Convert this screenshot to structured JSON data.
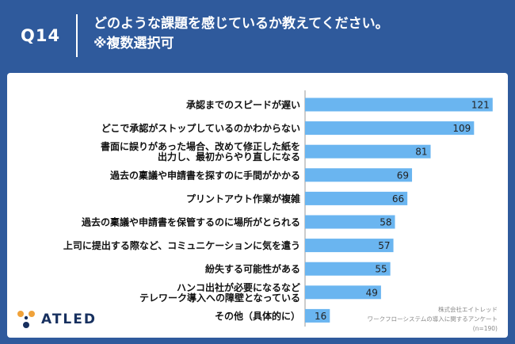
{
  "header": {
    "qnum": "Q14",
    "title_line1": "どのような課題を感じているか教えてください。",
    "title_line2": "※複数選択可"
  },
  "logo": {
    "text": "ATLED"
  },
  "footnote": {
    "company": "株式会社エイトレッド",
    "survey": "ワークフローシステムの導入に関するアンケート",
    "n": "(n=190)"
  },
  "colors": {
    "header_bg": "#2f5a9c",
    "bar": "#6ab5f0",
    "panel": "#ffffff"
  },
  "chart_data": {
    "type": "bar",
    "orientation": "horizontal",
    "categories": [
      [
        "承認までのスピードが遅い"
      ],
      [
        "どこで承認がストップしているのかわからない"
      ],
      [
        "書面に誤りがあった場合、改めて修正した紙を",
        "出力し、最初からやり直しになる"
      ],
      [
        "過去の稟議や申請書を探すのに手間がかかる"
      ],
      [
        "プリントアウト作業が複雑"
      ],
      [
        "過去の稟議や申請書を保管するのに場所がとられる"
      ],
      [
        "上司に提出する際など、コミュニケーションに気を遣う"
      ],
      [
        "紛失する可能性がある"
      ],
      [
        "ハンコ出社が必要になるなど",
        "テレワーク導入への障壁となっている"
      ],
      [
        "その他（具体的に）"
      ]
    ],
    "values": [
      121,
      109,
      81,
      69,
      66,
      58,
      57,
      55,
      49,
      16
    ],
    "xlim": [
      0,
      130
    ],
    "grid": false,
    "legend": "none"
  }
}
